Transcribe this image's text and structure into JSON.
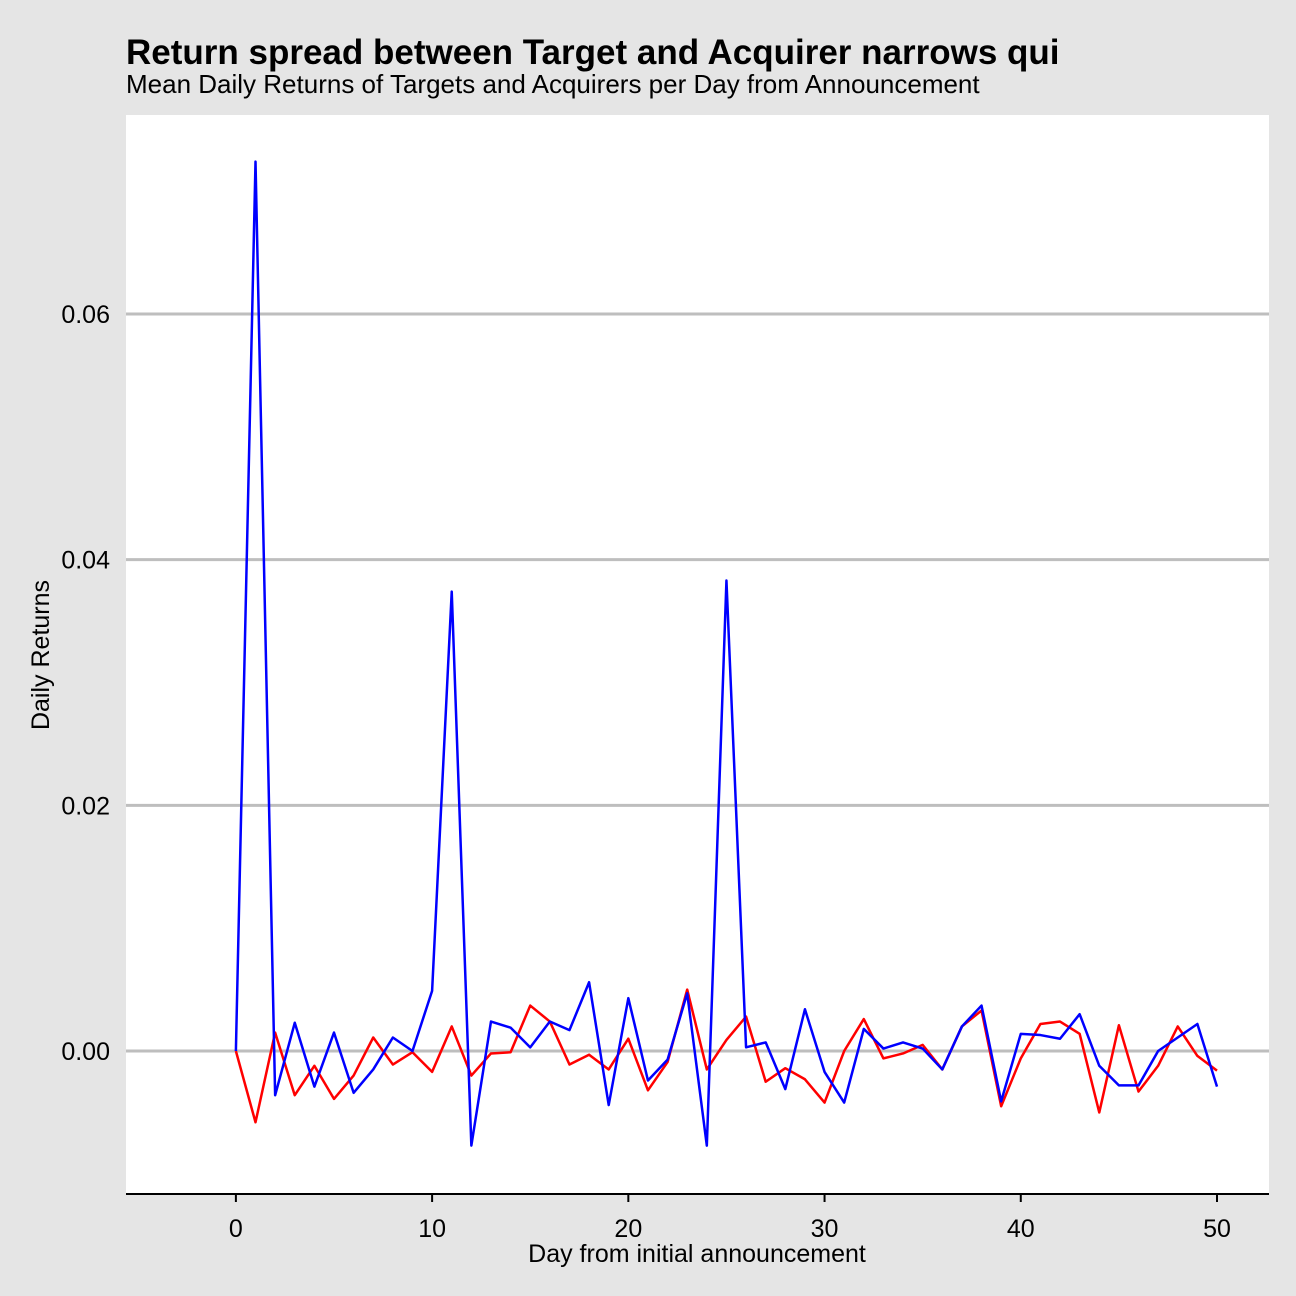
{
  "chart_data": {
    "type": "line",
    "title": "Return spread between Target and Acquirer narrows qui",
    "subtitle": "Mean Daily Returns of Targets and Acquirers per Day from Announcement",
    "x_label": "Day from initial announcement",
    "y_label": "Daily Returns",
    "x": [
      0,
      1,
      2,
      3,
      4,
      5,
      6,
      7,
      8,
      9,
      10,
      11,
      12,
      13,
      14,
      15,
      16,
      17,
      18,
      19,
      20,
      21,
      22,
      23,
      24,
      25,
      26,
      27,
      28,
      29,
      30,
      31,
      32,
      33,
      34,
      35,
      36,
      37,
      38,
      39,
      40,
      41,
      42,
      43,
      44,
      45,
      46,
      47,
      48,
      49,
      50
    ],
    "series": [
      {
        "color": "#ff0000",
        "values": [
          0,
          -0.0058,
          0.0015,
          -0.0036,
          -0.0012,
          -0.0039,
          -0.002,
          0.0011,
          -0.0011,
          -0.0001,
          -0.0017,
          0.002,
          -0.002,
          -0.0002,
          -0.0001,
          0.0037,
          0.0024,
          -0.0011,
          -0.0003,
          -0.0015,
          0.001,
          -0.0032,
          -0.0009,
          0.005,
          -0.0015,
          0.0009,
          0.0028,
          -0.0025,
          -0.0014,
          -0.0023,
          -0.0042,
          0,
          0.0026,
          -0.0006,
          -0.0002,
          0.0005,
          -0.0015,
          0.002,
          0.0033,
          -0.0045,
          -0.0006,
          0.0022,
          0.0024,
          0.0014,
          -0.005,
          0.0021,
          -0.0033,
          -0.0012,
          0.002,
          -0.0004,
          -0.0016
        ]
      },
      {
        "color": "#0000ff",
        "values": [
          0,
          0.0724,
          -0.0036,
          0.0023,
          -0.0029,
          0.0015,
          -0.0034,
          -0.0015,
          0.0011,
          0,
          0.0049,
          0.0374,
          -0.0077,
          0.0024,
          0.0019,
          0.0003,
          0.0024,
          0.0017,
          0.0056,
          -0.0044,
          0.0043,
          -0.0024,
          -0.0007,
          0.0047,
          -0.0077,
          0.0383,
          0.0003,
          0.0007,
          -0.0031,
          0.0034,
          -0.0017,
          -0.0042,
          0.0018,
          0.0002,
          0.0007,
          0.0002,
          -0.0015,
          0.002,
          0.0037,
          -0.0041,
          0.0014,
          0.0013,
          0.001,
          0.003,
          -0.0012,
          -0.0028,
          -0.0028,
          0,
          0.0011,
          0.0022,
          -0.0029
        ]
      }
    ],
    "xlim": [
      -5.6,
      52.65
    ],
    "ylim": [
      -0.01164,
      0.0762
    ],
    "xticks": [
      0,
      10,
      20,
      30,
      40,
      50
    ],
    "yticks": [
      {
        "value": 0,
        "label": "0.00"
      },
      0.02,
      0.04,
      0.06
    ],
    "grid": true
  }
}
